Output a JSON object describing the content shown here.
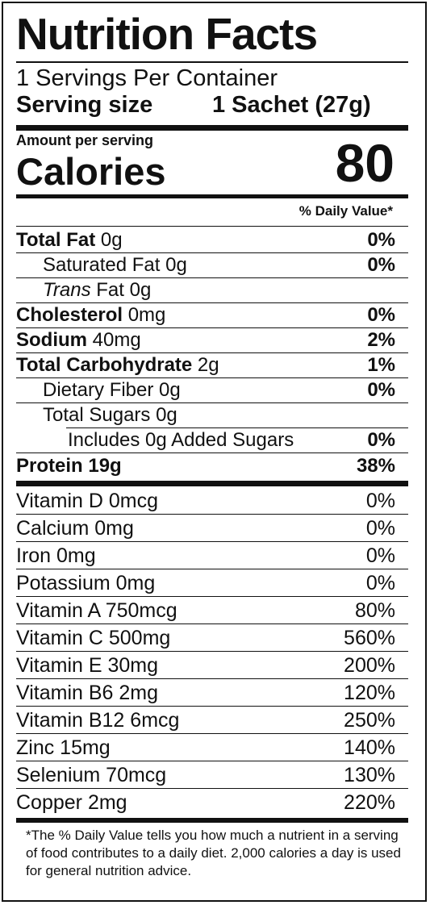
{
  "title": "Nutrition Facts",
  "servings_per_container": "1 Servings Per Container",
  "serving_size_label": "Serving size",
  "serving_size_value": "1 Sachet (27g)",
  "amount_per_serving": "Amount per serving",
  "calories_label": "Calories",
  "calories_value": "80",
  "daily_value_header": "% Daily Value*",
  "nutrients": [
    {
      "name": "Total Fat",
      "amount": "0g",
      "dv": "0%"
    },
    {
      "name": "Saturated Fat",
      "amount": "0g",
      "dv": "0%"
    },
    {
      "name": "Trans",
      "name_rest": "Fat",
      "amount": "0g",
      "dv": ""
    },
    {
      "name": "Cholesterol",
      "amount": "0mg",
      "dv": "0%"
    },
    {
      "name": "Sodium",
      "amount": "40mg",
      "dv": "2%"
    },
    {
      "name": "Total Carbohydrate",
      "amount": "2g",
      "dv": "1%"
    },
    {
      "name": "Dietary Fiber",
      "amount": "0g",
      "dv": "0%"
    },
    {
      "name": "Total Sugars",
      "amount": "0g",
      "dv": ""
    },
    {
      "name": "Includes 0g Added Sugars",
      "amount": "",
      "dv": "0%"
    },
    {
      "name": "Protein",
      "amount": "19g",
      "dv": "38%"
    }
  ],
  "vitamins": [
    {
      "name": "Vitamin D 0mcg",
      "dv": "0%"
    },
    {
      "name": "Calcium 0mg",
      "dv": "0%"
    },
    {
      "name": "Iron 0mg",
      "dv": "0%"
    },
    {
      "name": "Potassium 0mg",
      "dv": "0%"
    },
    {
      "name": "Vitamin A 750mcg",
      "dv": "80%"
    },
    {
      "name": "Vitamin C 500mg",
      "dv": "560%"
    },
    {
      "name": "Vitamin E 30mg",
      "dv": "200%"
    },
    {
      "name": "Vitamin B6 2mg",
      "dv": "120%"
    },
    {
      "name": "Vitamin B12 6mcg",
      "dv": "250%"
    },
    {
      "name": "Zinc 15mg",
      "dv": "140%"
    },
    {
      "name": "Selenium 70mcg",
      "dv": "130%"
    },
    {
      "name": "Copper 2mg",
      "dv": "220%"
    }
  ],
  "footnote": "*The % Daily Value tells you how much a nutrient in a serving of food contributes to a daily diet. 2,000 calories a day is used for general nutrition advice."
}
